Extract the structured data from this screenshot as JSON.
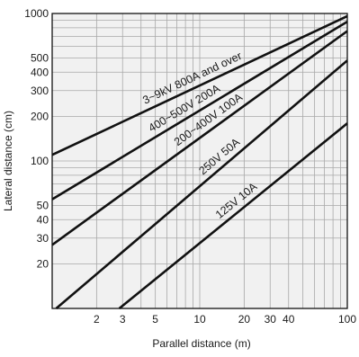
{
  "chart_data": {
    "type": "line",
    "title": "",
    "xlabel": "Parallel distance (m)",
    "ylabel": "Lateral distance (cm)",
    "x_scale": "log",
    "y_scale": "log",
    "xlim": [
      1,
      100
    ],
    "ylim": [
      10,
      1000
    ],
    "grid": true,
    "legend": "none",
    "x_ticks": [
      1,
      2,
      3,
      4,
      5,
      6,
      7,
      8,
      9,
      10,
      20,
      30,
      40,
      50,
      60,
      70,
      80,
      90,
      100
    ],
    "x_tick_labels": [
      {
        "value": 2,
        "label": "2"
      },
      {
        "value": 3,
        "label": "3"
      },
      {
        "value": 5,
        "label": "5"
      },
      {
        "value": 10,
        "label": "10"
      },
      {
        "value": 20,
        "label": "20"
      },
      {
        "value": 30,
        "label": "30"
      },
      {
        "value": 40,
        "label": "40"
      },
      {
        "value": 100,
        "label": "100"
      }
    ],
    "y_ticks": [
      10,
      20,
      30,
      40,
      50,
      60,
      70,
      80,
      90,
      100,
      200,
      300,
      400,
      500,
      600,
      700,
      800,
      900,
      1000
    ],
    "y_tick_labels": [
      {
        "value": 20,
        "label": "20"
      },
      {
        "value": 30,
        "label": "30"
      },
      {
        "value": 40,
        "label": "40"
      },
      {
        "value": 50,
        "label": "50"
      },
      {
        "value": 100,
        "label": "100"
      },
      {
        "value": 200,
        "label": "200"
      },
      {
        "value": 300,
        "label": "300"
      },
      {
        "value": 400,
        "label": "400"
      },
      {
        "value": 500,
        "label": "500"
      },
      {
        "value": 1000,
        "label": "1000"
      }
    ],
    "series": [
      {
        "name": "3~9kV 800A and over",
        "x": [
          1,
          100
        ],
        "y": [
          110,
          960
        ]
      },
      {
        "name": "400~500V 200A",
        "x": [
          1,
          100
        ],
        "y": [
          55,
          880
        ]
      },
      {
        "name": "200~400V 100A",
        "x": [
          1,
          100
        ],
        "y": [
          27,
          760
        ]
      },
      {
        "name": "250V 50A",
        "x": [
          1.065,
          100
        ],
        "y": [
          10,
          480
        ]
      },
      {
        "name": "125V 10A",
        "x": [
          2.85,
          100
        ],
        "y": [
          10,
          180
        ]
      }
    ],
    "line_color": "#111111",
    "grid_color": "#a8a8a8",
    "plot_background": "#f1f1f1"
  }
}
